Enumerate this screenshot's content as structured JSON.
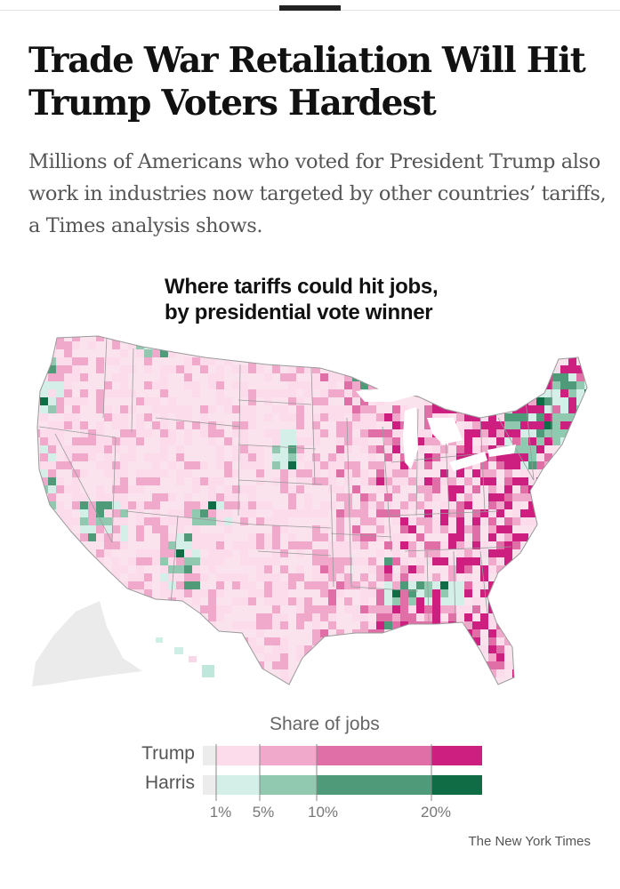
{
  "article": {
    "headline": "Trade War Retaliation Will Hit Trump Voters Hardest",
    "dek": "Millions of Americans who voted for President Trump also work in industries now targeted by other countries’ tariffs, a Times analysis shows."
  },
  "map": {
    "title_line1": "Where tariffs could hit jobs,",
    "title_line2": "by presidential vote winner"
  },
  "legend": {
    "title": "Share of jobs",
    "rows": [
      {
        "label": "Trump",
        "colors": [
          "#ececec",
          "#fcdcea",
          "#f0a8cb",
          "#e06fa7",
          "#cc1f7f"
        ]
      },
      {
        "label": "Harris",
        "colors": [
          "#ececec",
          "#d3efe7",
          "#90c8b0",
          "#4f9a78",
          "#0f6c45"
        ]
      }
    ],
    "ticks": [
      "1%",
      "5%",
      "10%",
      "20%"
    ],
    "tick_values": [
      1,
      5,
      10,
      20
    ]
  },
  "chart_data": {
    "type": "choropleth",
    "title": "Where tariffs could hit jobs, by presidential vote winner",
    "legend_title": "Share of jobs",
    "categories": [
      "Trump",
      "Harris"
    ],
    "bins_percent": [
      [
        0,
        1
      ],
      [
        1,
        5
      ],
      [
        5,
        10
      ],
      [
        10,
        20
      ],
      [
        20,
        null
      ]
    ]
  },
  "credit": "The New York Times"
}
